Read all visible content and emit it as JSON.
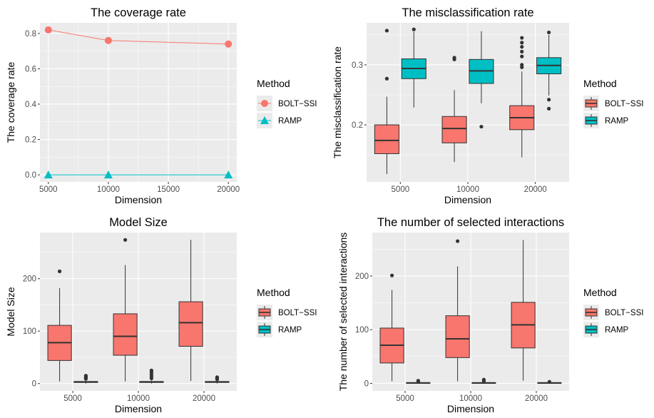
{
  "chart_data": [
    {
      "type": "line",
      "title": "The coverage rate",
      "xlabel": "Dimension",
      "ylabel": "The coverage rate",
      "x": [
        5000,
        10000,
        20000
      ],
      "x_ticks": [
        "5000",
        "10000",
        "15000",
        "20000"
      ],
      "y_ticks": [
        "0.0",
        "0.2",
        "0.4",
        "0.6",
        "0.8"
      ],
      "xlim": [
        4300,
        20700
      ],
      "ylim": [
        -0.04,
        0.86
      ],
      "grid": true,
      "legend": {
        "title": "Method",
        "position": "right"
      },
      "series": [
        {
          "name": "BOLT−SSI",
          "color": "#F8766D",
          "marker": "circle",
          "values": [
            0.82,
            0.76,
            0.74
          ]
        },
        {
          "name": "RAMP",
          "color": "#00BFC4",
          "marker": "triangle",
          "values": [
            0.0,
            0.0,
            0.0
          ]
        }
      ]
    },
    {
      "type": "boxplot",
      "title": "The misclassification rate",
      "xlabel": "Dimension",
      "ylabel": "The misclassification rate",
      "categories": [
        "5000",
        "10000",
        "20000"
      ],
      "y_ticks": [
        "0.2",
        "0.3"
      ],
      "ylim": [
        0.105,
        0.37
      ],
      "grid": true,
      "legend": {
        "title": "Method",
        "position": "right"
      },
      "series": [
        {
          "name": "BOLT−SSI",
          "color": "#F8766D",
          "boxes": [
            {
              "lower": 0.118,
              "q1": 0.152,
              "median": 0.174,
              "q3": 0.2,
              "upper": 0.247,
              "outliers": [
                0.277,
                0.357
              ]
            },
            {
              "lower": 0.138,
              "q1": 0.17,
              "median": 0.194,
              "q3": 0.214,
              "upper": 0.258,
              "outliers": [
                0.309,
                0.312
              ]
            },
            {
              "lower": 0.146,
              "q1": 0.192,
              "median": 0.212,
              "q3": 0.232,
              "upper": 0.289,
              "outliers": [
                0.296,
                0.3,
                0.314,
                0.322,
                0.33,
                0.337,
                0.345
              ]
            }
          ]
        },
        {
          "name": "RAMP",
          "color": "#00BFC4",
          "boxes": [
            {
              "lower": 0.229,
              "q1": 0.277,
              "median": 0.294,
              "q3": 0.31,
              "upper": 0.355,
              "outliers": [
                0.359
              ]
            },
            {
              "lower": 0.236,
              "q1": 0.269,
              "median": 0.29,
              "q3": 0.309,
              "upper": 0.356,
              "outliers": [
                0.197
              ]
            },
            {
              "lower": 0.249,
              "q1": 0.285,
              "median": 0.299,
              "q3": 0.312,
              "upper": 0.35,
              "outliers": [
                0.227,
                0.242,
                0.354
              ]
            }
          ]
        }
      ]
    },
    {
      "type": "boxplot",
      "title": "Model Size",
      "xlabel": "Dimension",
      "ylabel": "Model Size",
      "categories": [
        "5000",
        "10000",
        "20000"
      ],
      "y_ticks": [
        "0",
        "100",
        "200"
      ],
      "ylim": [
        -14,
        288
      ],
      "grid": true,
      "legend": {
        "title": "Method",
        "position": "right"
      },
      "series": [
        {
          "name": "BOLT−SSI",
          "color": "#F8766D",
          "boxes": [
            {
              "lower": 4,
              "q1": 44,
              "median": 78,
              "q3": 111,
              "upper": 182,
              "outliers": [
                214
              ]
            },
            {
              "lower": 4,
              "q1": 54,
              "median": 90,
              "q3": 133,
              "upper": 226,
              "outliers": [
                274
              ]
            },
            {
              "lower": 5,
              "q1": 71,
              "median": 116,
              "q3": 156,
              "upper": 274,
              "outliers": []
            }
          ]
        },
        {
          "name": "RAMP",
          "color": "#00BFC4",
          "boxes": [
            {
              "lower": 0,
              "q1": 2,
              "median": 3,
              "q3": 4,
              "upper": 6,
              "outliers": [
                9,
                11,
                13,
                15
              ]
            },
            {
              "lower": 0,
              "q1": 2,
              "median": 3,
              "q3": 4,
              "upper": 6,
              "outliers": [
                10,
                14,
                18,
                22,
                25
              ]
            },
            {
              "lower": 0,
              "q1": 2,
              "median": 3,
              "q3": 4,
              "upper": 6,
              "outliers": [
                8,
                10,
                12
              ]
            }
          ]
        }
      ]
    },
    {
      "type": "boxplot",
      "title": "The number of selected interactions",
      "xlabel": "Dimension",
      "ylabel": "The number of selected interactions",
      "categories": [
        "5000",
        "10000",
        "20000"
      ],
      "y_ticks": [
        "0",
        "100",
        "200"
      ],
      "ylim": [
        -14,
        281
      ],
      "grid": true,
      "legend": {
        "title": "Method",
        "position": "right"
      },
      "series": [
        {
          "name": "BOLT−SSI",
          "color": "#F8766D",
          "boxes": [
            {
              "lower": 4,
              "q1": 38,
              "median": 71,
              "q3": 103,
              "upper": 174,
              "outliers": [
                201
              ]
            },
            {
              "lower": 4,
              "q1": 48,
              "median": 83,
              "q3": 126,
              "upper": 218,
              "outliers": [
                265
              ]
            },
            {
              "lower": 5,
              "q1": 66,
              "median": 109,
              "q3": 151,
              "upper": 267,
              "outliers": []
            }
          ]
        },
        {
          "name": "RAMP",
          "color": "#00BFC4",
          "boxes": [
            {
              "lower": 0,
              "q1": 0,
              "median": 1,
              "q3": 1,
              "upper": 2,
              "outliers": [
                3,
                5
              ]
            },
            {
              "lower": 0,
              "q1": 0,
              "median": 1,
              "q3": 1,
              "upper": 2,
              "outliers": [
                4,
                7
              ]
            },
            {
              "lower": 0,
              "q1": 0,
              "median": 1,
              "q3": 1,
              "upper": 2,
              "outliers": [
                3
              ]
            }
          ]
        }
      ]
    }
  ]
}
